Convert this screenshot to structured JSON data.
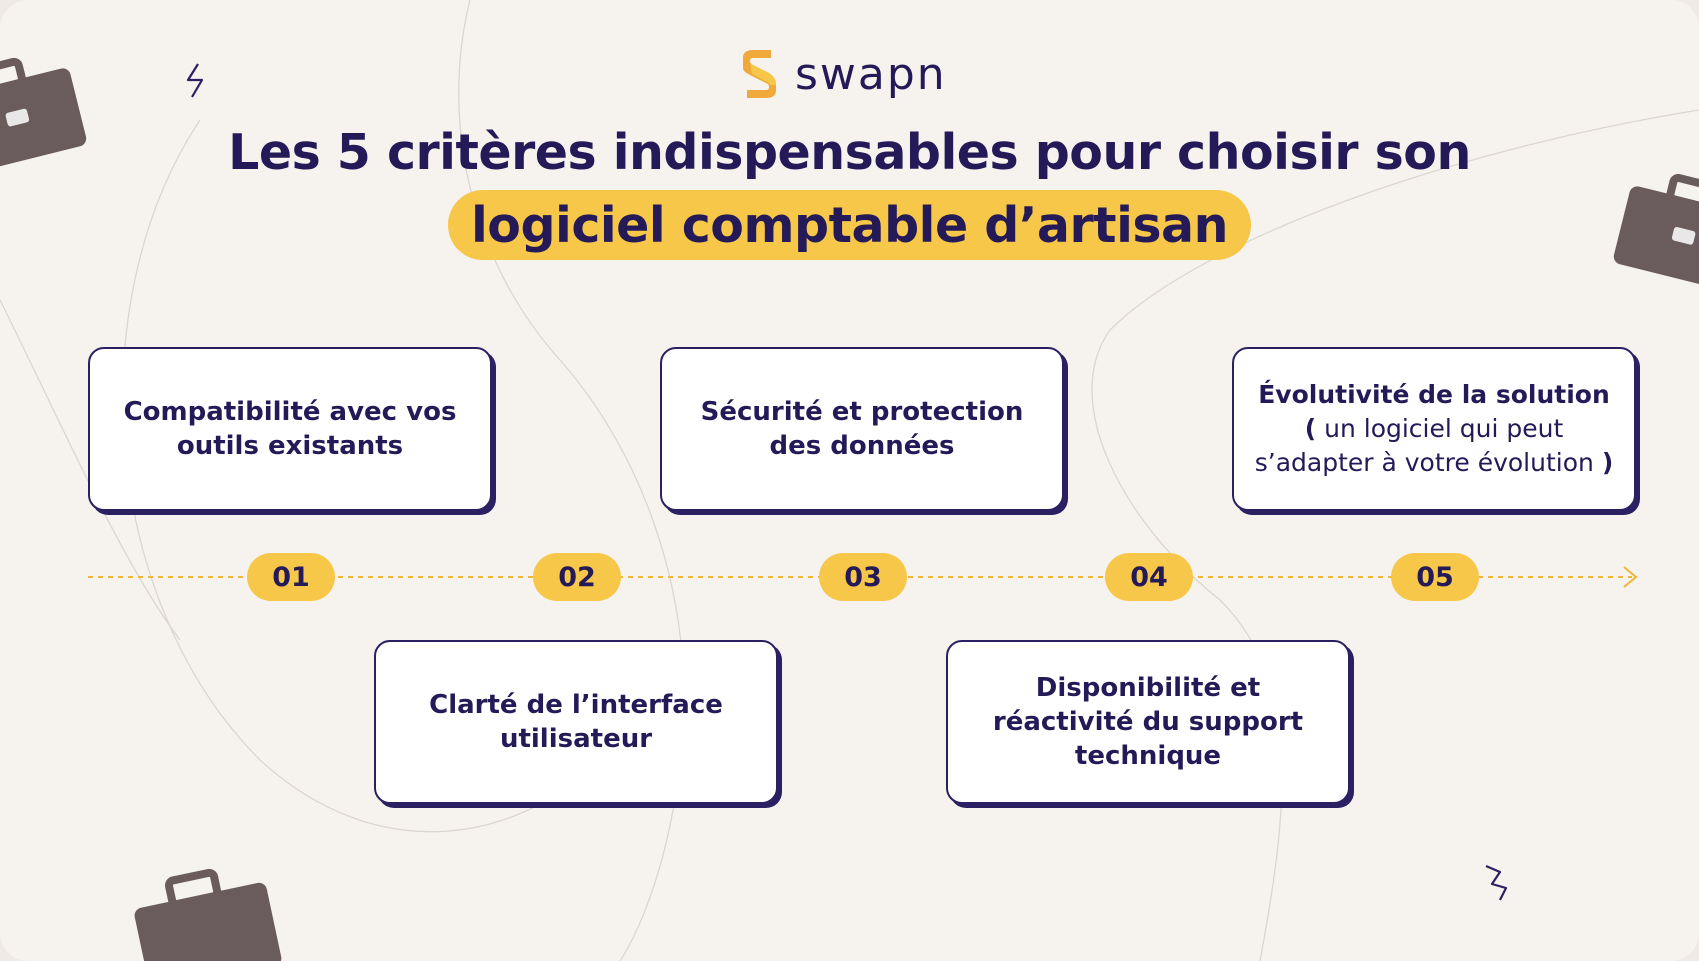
{
  "brand": {
    "name": "swapn",
    "colors": {
      "navy": "#241a57",
      "yellow": "#f7c74a",
      "background": "#f6f2ee",
      "briefcase": "#6a5c5c"
    }
  },
  "title": {
    "line1": "Les 5 critères indispensables pour choisir son",
    "line2_highlight": "logiciel comptable d’artisan"
  },
  "steps": [
    {
      "number": "01",
      "text": "Compatibilité avec vos outils existants"
    },
    {
      "number": "02",
      "text": "Clarté de l’interface utilisateur"
    },
    {
      "number": "03",
      "text": "Sécurité et protection des données"
    },
    {
      "number": "04",
      "text": "Disponibilité et réactivité du support technique"
    },
    {
      "number": "05",
      "text_bold_1": "Évolutivité de la solution",
      "text_bold_open": "(",
      "text_regular": "un logiciel qui peut s’adapter à votre évolution",
      "text_bold_close": ")"
    }
  ],
  "icons": [
    "swapn-logo-icon",
    "briefcase-icon",
    "lightning-icon",
    "arrow-right-icon"
  ]
}
